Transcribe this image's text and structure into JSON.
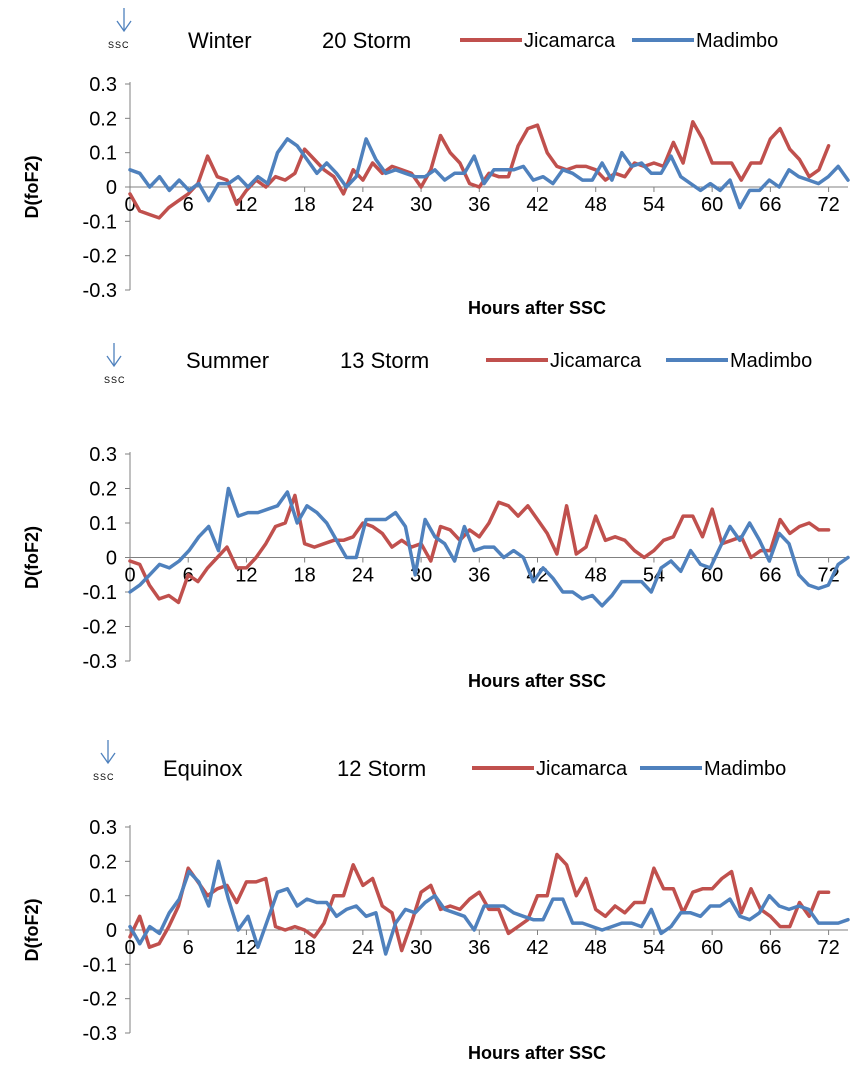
{
  "chart_data": [
    {
      "type": "line",
      "ssc_marker": "SSC",
      "season": "Winter",
      "storm_label": "20 Storm",
      "xlabel": "Hours after SSC",
      "ylabel": "D(foF2)",
      "xlim": [
        0,
        74
      ],
      "ylim": [
        -0.3,
        0.3
      ],
      "x_ticks": [
        0,
        6,
        12,
        18,
        24,
        30,
        36,
        42,
        48,
        54,
        60,
        66,
        72
      ],
      "y_ticks": [
        "0.3",
        "0.2",
        "0.1",
        "0",
        "-0.1",
        "-0.2",
        "-0.3"
      ],
      "legend_position": "top-right",
      "series": [
        {
          "name": "Jicamarca",
          "color": "#c0504d",
          "x_end": 72,
          "values": [
            -0.02,
            -0.07,
            -0.08,
            -0.09,
            -0.06,
            -0.04,
            -0.02,
            0.01,
            0.09,
            0.03,
            0.02,
            -0.05,
            -0.01,
            0.02,
            0.0,
            0.03,
            0.02,
            0.04,
            0.11,
            0.08,
            0.05,
            0.03,
            -0.02,
            0.05,
            0.02,
            0.07,
            0.04,
            0.06,
            0.05,
            0.04,
            0.0,
            0.05,
            0.15,
            0.1,
            0.07,
            0.01,
            0.0,
            0.04,
            0.03,
            0.03,
            0.12,
            0.17,
            0.18,
            0.1,
            0.06,
            0.05,
            0.06,
            0.06,
            0.05,
            0.02,
            0.04,
            0.03,
            0.07,
            0.06,
            0.07,
            0.06,
            0.13,
            0.07,
            0.19,
            0.14,
            0.07,
            0.07,
            0.07,
            0.02,
            0.07,
            0.07,
            0.14,
            0.17,
            0.11,
            0.08,
            0.03,
            0.05,
            0.12
          ]
        },
        {
          "name": "Madimbo",
          "color": "#4f81bd",
          "x_end": 74,
          "values": [
            0.05,
            0.04,
            0.0,
            0.03,
            -0.01,
            0.02,
            -0.01,
            0.01,
            -0.04,
            0.01,
            0.01,
            0.03,
            0.0,
            0.03,
            0.01,
            0.1,
            0.14,
            0.12,
            0.08,
            0.04,
            0.07,
            0.04,
            0.0,
            0.03,
            0.14,
            0.08,
            0.04,
            0.05,
            0.04,
            0.03,
            0.03,
            0.05,
            0.02,
            0.04,
            0.04,
            0.09,
            0.01,
            0.05,
            0.05,
            0.05,
            0.06,
            0.02,
            0.03,
            0.01,
            0.05,
            0.04,
            0.02,
            0.02,
            0.07,
            0.02,
            0.1,
            0.06,
            0.07,
            0.04,
            0.04,
            0.09,
            0.03,
            0.01,
            -0.01,
            0.01,
            -0.01,
            0.02,
            -0.06,
            -0.01,
            -0.01,
            0.02,
            0.0,
            0.05,
            0.03,
            0.02,
            0.01,
            0.03,
            0.06,
            0.02
          ]
        }
      ]
    },
    {
      "type": "line",
      "ssc_marker": "SSC",
      "season": "Summer",
      "storm_label": "13 Storm",
      "xlabel": "Hours after SSC",
      "ylabel": "D(foF2)",
      "xlim": [
        0,
        74
      ],
      "ylim": [
        -0.3,
        0.3
      ],
      "x_ticks": [
        0,
        6,
        12,
        18,
        24,
        30,
        36,
        42,
        48,
        54,
        60,
        66,
        72
      ],
      "y_ticks": [
        "0.3",
        "0.2",
        "0.1",
        "0",
        "-0.1",
        "-0.2",
        "-0.3"
      ],
      "legend_position": "top-right",
      "series": [
        {
          "name": "Jicamarca",
          "color": "#c0504d",
          "x_end": 72,
          "values": [
            -0.01,
            -0.02,
            -0.08,
            -0.12,
            -0.11,
            -0.13,
            -0.05,
            -0.07,
            -0.03,
            0.0,
            0.03,
            -0.03,
            -0.03,
            0.0,
            0.04,
            0.09,
            0.1,
            0.18,
            0.04,
            0.03,
            0.04,
            0.05,
            0.05,
            0.06,
            0.1,
            0.09,
            0.07,
            0.03,
            0.05,
            0.03,
            0.04,
            -0.01,
            0.09,
            0.08,
            0.05,
            0.08,
            0.06,
            0.1,
            0.16,
            0.15,
            0.12,
            0.15,
            0.11,
            0.07,
            0.01,
            0.15,
            0.01,
            0.03,
            0.12,
            0.05,
            0.06,
            0.05,
            0.02,
            0.0,
            0.02,
            0.05,
            0.06,
            0.12,
            0.12,
            0.06,
            0.14,
            0.04,
            0.05,
            0.06,
            0.0,
            0.02,
            0.02,
            0.11,
            0.07,
            0.09,
            0.1,
            0.08,
            0.08
          ]
        },
        {
          "name": "Madimbo",
          "color": "#4f81bd",
          "x_end": 74,
          "values": [
            -0.1,
            -0.08,
            -0.05,
            -0.02,
            -0.03,
            -0.01,
            0.02,
            0.06,
            0.09,
            0.02,
            0.2,
            0.12,
            0.13,
            0.13,
            0.14,
            0.15,
            0.19,
            0.1,
            0.15,
            0.13,
            0.1,
            0.05,
            0.0,
            0.0,
            0.11,
            0.11,
            0.11,
            0.13,
            0.09,
            -0.05,
            0.11,
            0.06,
            0.04,
            -0.01,
            0.09,
            0.02,
            0.03,
            0.03,
            0.0,
            0.02,
            0.0,
            -0.07,
            -0.03,
            -0.06,
            -0.1,
            -0.1,
            -0.12,
            -0.11,
            -0.14,
            -0.11,
            -0.07,
            -0.07,
            -0.07,
            -0.1,
            -0.03,
            -0.01,
            -0.04,
            0.02,
            -0.02,
            -0.03,
            0.03,
            0.09,
            0.05,
            0.1,
            0.05,
            -0.01,
            0.07,
            0.04,
            -0.05,
            -0.08,
            -0.09,
            -0.08,
            -0.02,
            0.0
          ]
        }
      ]
    },
    {
      "type": "line",
      "ssc_marker": "SSC",
      "season": "Equinox",
      "storm_label": "12 Storm",
      "xlabel": "Hours after SSC",
      "ylabel": "D(foF2)",
      "xlim": [
        0,
        74
      ],
      "ylim": [
        -0.3,
        0.3
      ],
      "x_ticks": [
        0,
        6,
        12,
        18,
        24,
        30,
        36,
        42,
        48,
        54,
        60,
        66,
        72
      ],
      "y_ticks": [
        "0.3",
        "0.2",
        "0.1",
        "0",
        "-0.1",
        "-0.2",
        "-0.3"
      ],
      "legend_position": "top-right",
      "series": [
        {
          "name": "Jicamarca",
          "color": "#c0504d",
          "x_end": 72,
          "values": [
            -0.02,
            0.04,
            -0.05,
            -0.04,
            0.01,
            0.07,
            0.18,
            0.14,
            0.1,
            0.12,
            0.13,
            0.08,
            0.14,
            0.14,
            0.15,
            0.01,
            0.0,
            0.01,
            0.0,
            -0.02,
            0.02,
            0.1,
            0.1,
            0.19,
            0.13,
            0.15,
            0.07,
            0.05,
            -0.06,
            0.02,
            0.11,
            0.13,
            0.06,
            0.07,
            0.06,
            0.09,
            0.11,
            0.06,
            0.06,
            -0.01,
            0.01,
            0.03,
            0.1,
            0.1,
            0.22,
            0.19,
            0.1,
            0.15,
            0.06,
            0.04,
            0.07,
            0.05,
            0.08,
            0.08,
            0.18,
            0.12,
            0.12,
            0.05,
            0.11,
            0.12,
            0.12,
            0.15,
            0.17,
            0.05,
            0.12,
            0.06,
            0.04,
            0.01,
            0.01,
            0.08,
            0.04,
            0.11,
            0.11
          ]
        },
        {
          "name": "Madimbo",
          "color": "#4f81bd",
          "x_end": 74,
          "values": [
            0.01,
            -0.04,
            0.01,
            -0.01,
            0.05,
            0.09,
            0.17,
            0.14,
            0.07,
            0.2,
            0.09,
            0.0,
            0.04,
            -0.05,
            0.03,
            0.11,
            0.12,
            0.07,
            0.09,
            0.08,
            0.08,
            0.04,
            0.06,
            0.07,
            0.04,
            0.05,
            -0.07,
            0.02,
            0.06,
            0.05,
            0.08,
            0.1,
            0.06,
            0.05,
            0.04,
            0.0,
            0.07,
            0.07,
            0.07,
            0.05,
            0.04,
            0.03,
            0.03,
            0.09,
            0.09,
            0.02,
            0.02,
            0.01,
            0.0,
            0.01,
            0.02,
            0.02,
            0.01,
            0.06,
            -0.01,
            0.01,
            0.05,
            0.05,
            0.04,
            0.07,
            0.07,
            0.09,
            0.04,
            0.03,
            0.05,
            0.1,
            0.07,
            0.06,
            0.07,
            0.06,
            0.02,
            0.02,
            0.02,
            0.03
          ]
        }
      ]
    }
  ]
}
